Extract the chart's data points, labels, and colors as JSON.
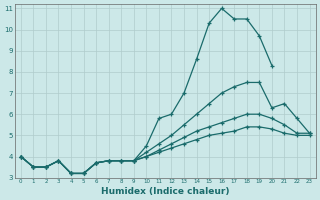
{
  "xlabel": "Humidex (Indice chaleur)",
  "bg_color": "#cce8e8",
  "grid_color": "#b0cccc",
  "line_color": "#1a6b6b",
  "xlim": [
    -0.5,
    23.5
  ],
  "ylim": [
    3,
    11.2
  ],
  "yticks": [
    3,
    4,
    5,
    6,
    7,
    8,
    9,
    10,
    11
  ],
  "xticks": [
    0,
    1,
    2,
    3,
    4,
    5,
    6,
    7,
    8,
    9,
    10,
    11,
    12,
    13,
    14,
    15,
    16,
    17,
    18,
    19,
    20,
    21,
    22,
    23
  ],
  "series": [
    {
      "x": [
        0,
        1,
        2,
        3,
        4,
        5,
        6,
        7,
        8,
        9,
        10,
        11,
        12,
        13,
        14,
        15,
        16,
        17,
        18,
        19,
        20
      ],
      "y": [
        4.0,
        3.5,
        3.5,
        3.8,
        3.2,
        3.2,
        3.7,
        3.8,
        3.8,
        3.8,
        4.5,
        5.8,
        6.0,
        7.0,
        8.6,
        10.3,
        11.0,
        10.5,
        10.5,
        9.7,
        8.3
      ]
    },
    {
      "x": [
        0,
        1,
        2,
        3,
        4,
        5,
        6,
        7,
        8,
        9,
        10,
        11,
        12,
        13,
        14,
        15,
        16,
        17,
        18,
        19,
        20,
        21,
        22,
        23
      ],
      "y": [
        4.0,
        3.5,
        3.5,
        3.8,
        3.2,
        3.2,
        3.7,
        3.8,
        3.8,
        3.8,
        4.2,
        4.6,
        5.0,
        5.5,
        6.0,
        6.5,
        7.0,
        7.3,
        7.5,
        7.5,
        6.3,
        6.5,
        5.8,
        5.1
      ]
    },
    {
      "x": [
        0,
        1,
        2,
        3,
        4,
        5,
        6,
        7,
        8,
        9,
        10,
        11,
        12,
        13,
        14,
        15,
        16,
        17,
        18,
        19,
        20,
        21,
        22,
        23
      ],
      "y": [
        4.0,
        3.5,
        3.5,
        3.8,
        3.2,
        3.2,
        3.7,
        3.8,
        3.8,
        3.8,
        4.0,
        4.3,
        4.6,
        4.9,
        5.2,
        5.4,
        5.6,
        5.8,
        6.0,
        6.0,
        5.8,
        5.5,
        5.1,
        5.1
      ]
    },
    {
      "x": [
        0,
        1,
        2,
        3,
        4,
        5,
        6,
        7,
        8,
        9,
        10,
        11,
        12,
        13,
        14,
        15,
        16,
        17,
        18,
        19,
        20,
        21,
        22,
        23
      ],
      "y": [
        4.0,
        3.5,
        3.5,
        3.8,
        3.2,
        3.2,
        3.7,
        3.8,
        3.8,
        3.8,
        4.0,
        4.2,
        4.4,
        4.6,
        4.8,
        5.0,
        5.1,
        5.2,
        5.4,
        5.4,
        5.3,
        5.1,
        5.0,
        5.0
      ]
    }
  ]
}
